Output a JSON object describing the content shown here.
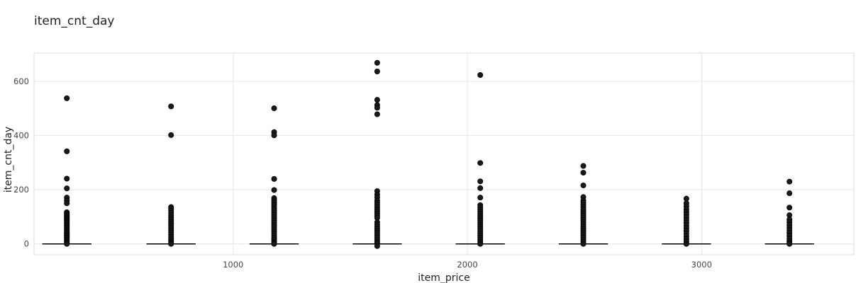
{
  "chart_data": {
    "type": "scatter",
    "title": "item_cnt_day",
    "xlabel": "item_price",
    "ylabel": "item_cnt_day",
    "xlim": [
      150,
      3650
    ],
    "ylim": [
      -40,
      705
    ],
    "xticks": [
      1000,
      2000,
      3000
    ],
    "yticks": [
      0,
      200,
      400,
      600
    ],
    "grid": true,
    "colors": {
      "marker": "#1a1a1a",
      "median_line": "#000000",
      "grid": "#e6e6e6",
      "frame": "#dddddd"
    },
    "groups": [
      {
        "x": 290,
        "box_half_width": 105,
        "median": 0,
        "points": [
          538,
          342,
          241,
          205,
          171,
          160,
          150,
          117,
          112,
          108,
          103,
          99,
          95,
          91,
          87,
          83,
          79,
          75,
          71,
          67,
          63,
          59,
          55,
          51,
          47,
          43,
          39,
          35,
          31,
          27,
          23,
          19,
          15,
          11,
          7,
          3,
          0
        ]
      },
      {
        "x": 735,
        "box_half_width": 105,
        "median": 0,
        "points": [
          508,
          402,
          136,
          130,
          122,
          114,
          106,
          98,
          90,
          82,
          74,
          66,
          58,
          50,
          42,
          34,
          26,
          18,
          10,
          4,
          0
        ]
      },
      {
        "x": 1175,
        "box_half_width": 105,
        "median": 0,
        "points": [
          501,
          413,
          401,
          240,
          199,
          169,
          162,
          154,
          146,
          139,
          131,
          124,
          116,
          108,
          100,
          93,
          86,
          78,
          70,
          62,
          54,
          46,
          38,
          30,
          22,
          15,
          8,
          3,
          0
        ]
      },
      {
        "x": 1615,
        "box_half_width": 105,
        "median": 0,
        "points": [
          669,
          637,
          532,
          513,
          503,
          479,
          195,
          183,
          172,
          160,
          152,
          144,
          136,
          128,
          120,
          112,
          104,
          96,
          80,
          72,
          64,
          56,
          48,
          40,
          32,
          24,
          16,
          8,
          2,
          -8
        ]
      },
      {
        "x": 2055,
        "box_half_width": 105,
        "median": 0,
        "points": [
          624,
          299,
          231,
          206,
          171,
          143,
          135,
          127,
          119,
          111,
          103,
          95,
          87,
          79,
          71,
          63,
          55,
          47,
          39,
          31,
          23,
          15,
          7,
          0
        ]
      },
      {
        "x": 2495,
        "box_half_width": 105,
        "median": 0,
        "points": [
          288,
          263,
          216,
          173,
          160,
          152,
          144,
          136,
          128,
          120,
          112,
          104,
          96,
          88,
          80,
          72,
          64,
          56,
          48,
          40,
          32,
          24,
          16,
          8,
          0
        ]
      },
      {
        "x": 2935,
        "box_half_width": 105,
        "median": 0,
        "points": [
          167,
          150,
          139,
          128,
          118,
          108,
          98,
          88,
          78,
          68,
          58,
          48,
          38,
          28,
          18,
          8,
          0
        ]
      },
      {
        "x": 3375,
        "box_half_width": 105,
        "median": 0,
        "points": [
          230,
          187,
          134,
          106,
          90,
          80,
          70,
          60,
          50,
          40,
          30,
          20,
          10,
          3,
          0
        ]
      }
    ]
  }
}
